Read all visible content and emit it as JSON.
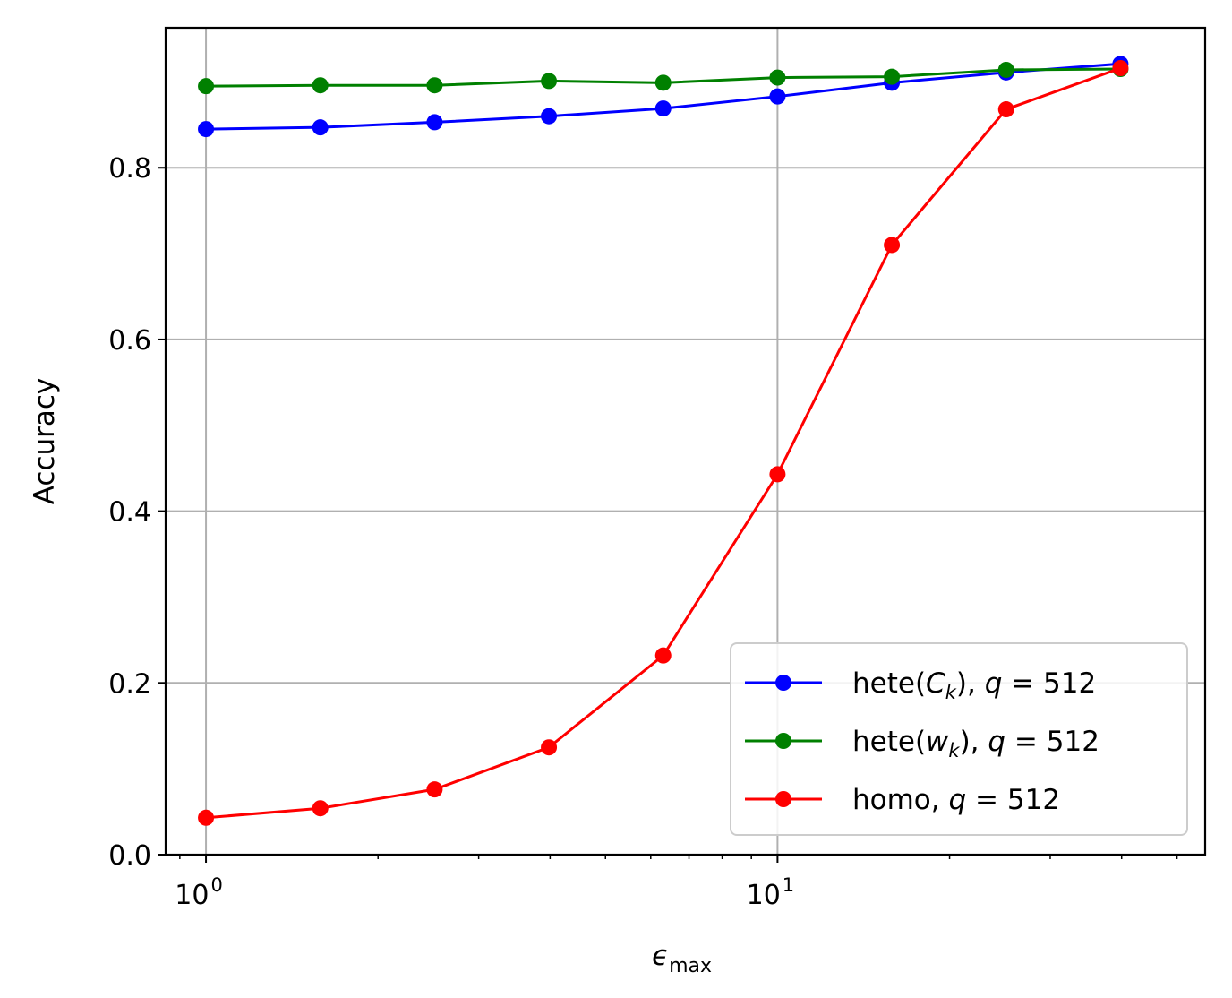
{
  "chart_data": {
    "type": "line",
    "xscale": "log",
    "xlim": [
      0.85,
      56
    ],
    "ylim": [
      0.0,
      0.963
    ],
    "title": "",
    "xlabel": {
      "base": "ϵ",
      "sub": "max"
    },
    "ylabel": "Accuracy",
    "x": [
      1.0,
      1.585,
      2.512,
      3.981,
      6.31,
      10.0,
      15.85,
      25.12,
      39.81
    ],
    "grid": true,
    "legend_position": "lower-right",
    "y_ticks": [
      {
        "value": 0.0,
        "label": "0.0"
      },
      {
        "value": 0.2,
        "label": "0.2"
      },
      {
        "value": 0.4,
        "label": "0.4"
      },
      {
        "value": 0.6,
        "label": "0.6"
      },
      {
        "value": 0.8,
        "label": "0.8"
      }
    ],
    "x_major_ticks": [
      {
        "value": 1,
        "base": "10",
        "exp": "0"
      },
      {
        "value": 10,
        "base": "10",
        "exp": "1"
      }
    ],
    "x_minor_ticks": [
      0.9,
      2,
      3,
      4,
      5,
      6,
      7,
      8,
      9,
      20,
      30,
      40,
      50
    ],
    "series": [
      {
        "name": "hete(C_k)",
        "legend": {
          "pre": "hete(",
          "ital": "C",
          "sub": "k",
          "post": "), ",
          "qvar": "q",
          "eq": " = 512"
        },
        "color": "#0000ff",
        "values": [
          0.845,
          0.847,
          0.853,
          0.86,
          0.869,
          0.883,
          0.899,
          0.911,
          0.921
        ]
      },
      {
        "name": "hete(w_k)",
        "legend": {
          "pre": "hete(",
          "ital": "w",
          "sub": "k",
          "post": "), ",
          "qvar": "q",
          "eq": " = 512"
        },
        "color": "#008000",
        "values": [
          0.895,
          0.896,
          0.896,
          0.901,
          0.899,
          0.905,
          0.906,
          0.914,
          0.915
        ]
      },
      {
        "name": "homo",
        "legend": {
          "pre": "homo, ",
          "ital": "",
          "sub": "",
          "post": "",
          "qvar": "q",
          "eq": " = 512"
        },
        "color": "#ff0000",
        "values": [
          0.043,
          0.054,
          0.076,
          0.125,
          0.232,
          0.443,
          0.71,
          0.868,
          0.916
        ]
      }
    ]
  }
}
